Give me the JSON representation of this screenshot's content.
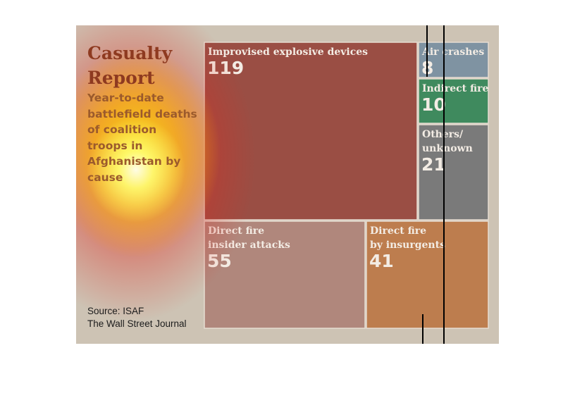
{
  "title": "Casualty Report",
  "subtitle": "Year-to-date battlefield deaths of coalition troops in Afghanistan by cause",
  "source_line1": "Source: ISAF",
  "source_line2": "The Wall Street Journal",
  "colors": {
    "background": "#cdc3b4",
    "ied": "#9a4e44",
    "air": "#7f93a2",
    "indirect": "#3f8a5e",
    "others": "#7a7a7a",
    "insider": "#b0877c",
    "insurgents": "#bd7d4e"
  },
  "chart_data": {
    "type": "treemap",
    "title": "Casualty Report",
    "subtitle": "Year-to-date battlefield deaths of coalition troops in Afghanistan by cause",
    "cells": [
      {
        "key": "ied",
        "label_lines": [
          "Improvised explosive devices"
        ],
        "value": 119
      },
      {
        "key": "air",
        "label_lines": [
          "Air crashes"
        ],
        "value": 8
      },
      {
        "key": "indirect",
        "label_lines": [
          "Indirect fire"
        ],
        "value": 10
      },
      {
        "key": "others",
        "label_lines": [
          "Others/",
          "unknown"
        ],
        "value": 21
      },
      {
        "key": "insider",
        "label_lines": [
          "Direct fire",
          "insider attacks"
        ],
        "value": 55
      },
      {
        "key": "insurgents",
        "label_lines": [
          "Direct fire",
          "by insurgents"
        ],
        "value": 41
      }
    ]
  }
}
